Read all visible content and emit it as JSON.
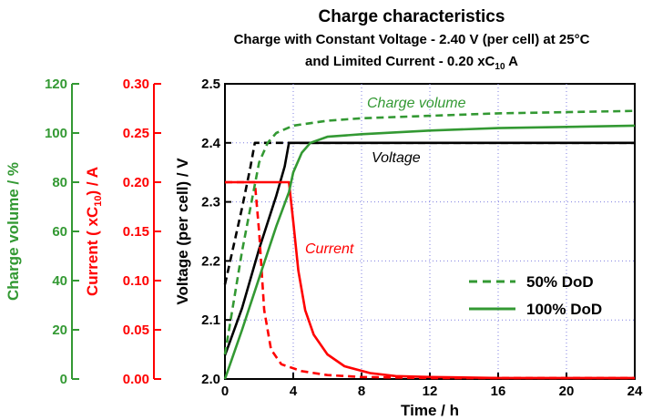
{
  "chart_data": {
    "type": "line",
    "title": "Charge characteristics",
    "subtitle_1": "Charge with Constant Voltage - 2.40 V (per cell) at 25°C",
    "subtitle_2_prefix": "and Limited Current - 0.20 xC",
    "subtitle_2_sub": "10",
    "subtitle_2_suffix": " A",
    "xlabel": "Time / h",
    "xlim": [
      0,
      24
    ],
    "x_ticks": [
      "0",
      "4",
      "8",
      "12",
      "16",
      "20",
      "24"
    ],
    "grid": "dotted vertical and horizontal lines",
    "axes": {
      "voltage": {
        "label": "Voltage (per cell) / V",
        "ylim": [
          2.0,
          2.5
        ],
        "ticks": [
          "2.0",
          "2.1",
          "2.2",
          "2.3",
          "2.4",
          "2.5"
        ],
        "color": "#000000"
      },
      "current": {
        "label_prefix": "Current ( xC",
        "label_sub": "10",
        "label_suffix": ") / A",
        "ylim": [
          0.0,
          0.3
        ],
        "ticks": [
          "0.00",
          "0.05",
          "0.10",
          "0.15",
          "0.20",
          "0.25",
          "0.30"
        ],
        "color": "#ff0000"
      },
      "charge_volume": {
        "label": "Charge volume / %",
        "ylim": [
          0,
          120
        ],
        "ticks": [
          "0",
          "20",
          "40",
          "60",
          "80",
          "100",
          "120"
        ],
        "color": "#339933"
      }
    },
    "annotations": {
      "charge_volume": "Charge volume",
      "voltage": "Voltage",
      "current": "Current"
    },
    "legend": {
      "position": "lower-right",
      "entries": [
        {
          "label": "50% DoD",
          "style": "dashed"
        },
        {
          "label": "100% DoD",
          "style": "solid"
        }
      ]
    },
    "series": [
      {
        "quantity": "voltage",
        "dod": "50% DoD",
        "axis": "voltage",
        "color": "#000000",
        "dash": true,
        "points": [
          [
            0,
            2.16
          ],
          [
            1.0,
            2.29
          ],
          [
            1.5,
            2.36
          ],
          [
            1.75,
            2.4
          ],
          [
            24,
            2.4
          ]
        ]
      },
      {
        "quantity": "voltage",
        "dod": "100% DoD",
        "axis": "voltage",
        "color": "#000000",
        "dash": false,
        "points": [
          [
            0,
            2.04
          ],
          [
            1.0,
            2.12
          ],
          [
            2.0,
            2.22
          ],
          [
            3.0,
            2.31
          ],
          [
            3.5,
            2.36
          ],
          [
            3.75,
            2.4
          ],
          [
            24,
            2.4
          ]
        ]
      },
      {
        "quantity": "current",
        "dod": "50% DoD",
        "axis": "current",
        "color": "#ff0000",
        "dash": true,
        "points": [
          [
            0,
            0.2
          ],
          [
            1.75,
            0.2
          ],
          [
            2.0,
            0.15
          ],
          [
            2.3,
            0.07
          ],
          [
            2.7,
            0.03
          ],
          [
            3.3,
            0.015
          ],
          [
            4.5,
            0.008
          ],
          [
            6,
            0.004
          ],
          [
            8,
            0.002
          ],
          [
            12,
            0.001
          ],
          [
            24,
            0.001
          ]
        ]
      },
      {
        "quantity": "current",
        "dod": "100% DoD",
        "axis": "current",
        "color": "#ff0000",
        "dash": false,
        "points": [
          [
            0,
            0.2
          ],
          [
            3.75,
            0.2
          ],
          [
            4.0,
            0.16
          ],
          [
            4.3,
            0.11
          ],
          [
            4.7,
            0.07
          ],
          [
            5.2,
            0.045
          ],
          [
            6.0,
            0.025
          ],
          [
            7.0,
            0.013
          ],
          [
            8.5,
            0.006
          ],
          [
            10,
            0.003
          ],
          [
            12,
            0.002
          ],
          [
            16,
            0.001
          ],
          [
            24,
            0.001
          ]
        ]
      },
      {
        "quantity": "charge_volume",
        "dod": "50% DoD",
        "axis": "charge_volume",
        "color": "#339933",
        "dash": true,
        "points": [
          [
            0,
            10
          ],
          [
            1.0,
            52
          ],
          [
            2.0,
            88
          ],
          [
            2.5,
            96
          ],
          [
            3.0,
            100
          ],
          [
            4,
            103
          ],
          [
            6,
            105
          ],
          [
            8,
            106
          ],
          [
            12,
            107
          ],
          [
            16,
            108
          ],
          [
            20,
            108.5
          ],
          [
            24,
            109
          ]
        ]
      },
      {
        "quantity": "charge_volume",
        "dod": "100% DoD",
        "axis": "charge_volume",
        "color": "#339933",
        "dash": false,
        "points": [
          [
            0,
            0
          ],
          [
            1.0,
            20
          ],
          [
            2.0,
            41
          ],
          [
            3.0,
            62
          ],
          [
            3.75,
            76
          ],
          [
            4.0,
            84
          ],
          [
            4.5,
            92
          ],
          [
            5.0,
            96
          ],
          [
            6.0,
            98.5
          ],
          [
            8,
            99.5
          ],
          [
            12,
            101
          ],
          [
            16,
            102
          ],
          [
            20,
            102.5
          ],
          [
            24,
            103
          ]
        ]
      }
    ]
  }
}
